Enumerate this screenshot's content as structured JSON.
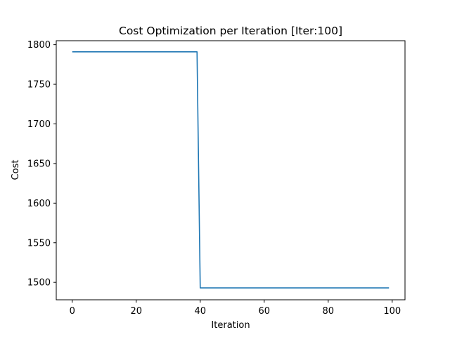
{
  "chart_data": {
    "type": "line",
    "title": "Cost Optimization per Iteration [Iter:100]",
    "xlabel": "Iteration",
    "ylabel": "Cost",
    "xlim": [
      -5,
      104
    ],
    "ylim": [
      1478,
      1805
    ],
    "grid": false,
    "xticks": [
      0,
      20,
      40,
      60,
      80,
      100
    ],
    "yticks": [
      1500,
      1550,
      1600,
      1650,
      1700,
      1750,
      1800
    ],
    "line_color": "#1f77b4",
    "series": [
      {
        "points": [
          [
            0,
            1791
          ],
          [
            39,
            1791
          ],
          [
            40,
            1493
          ],
          [
            99,
            1493
          ]
        ]
      }
    ]
  }
}
